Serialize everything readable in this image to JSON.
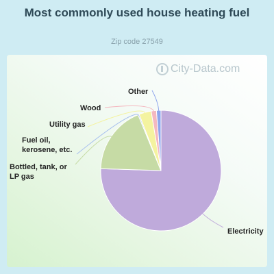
{
  "header": {
    "title": "Most commonly used house heating fuel",
    "subtitle": "Zip code 27549"
  },
  "watermark": {
    "text": "City-Data.com",
    "icon": "city-data-logo-icon"
  },
  "colors": {
    "background": "#cfecf3",
    "title": "#2f4a57",
    "subtitle": "#88a0aa",
    "label": "#222222"
  },
  "chart_data": {
    "type": "pie",
    "title": "Most commonly used house heating fuel",
    "subtitle": "Zip code 27549",
    "legend": "none (callout labels)",
    "slices": [
      {
        "label": "Electricity",
        "value": 75.5,
        "color": "#bfaadb",
        "label_lines": [
          "Electricity"
        ]
      },
      {
        "label": "Bottled, tank, or LP gas",
        "value": 18.3,
        "color": "#c6dba5",
        "label_lines": [
          "Bottled, tank, or",
          "LP gas"
        ]
      },
      {
        "label": "Fuel oil, kerosene, etc.",
        "value": 0.3,
        "color": "#a8c0ee",
        "label_lines": [
          "Fuel oil,",
          "kerosene, etc."
        ]
      },
      {
        "label": "Utility gas",
        "value": 3.3,
        "color": "#f4f3a0",
        "label_lines": [
          "Utility gas"
        ]
      },
      {
        "label": "Wood",
        "value": 1.4,
        "color": "#f4b8c0",
        "label_lines": [
          "Wood"
        ]
      },
      {
        "label": "Other",
        "value": 1.2,
        "color": "#8fa6ec",
        "label_lines": [
          "Other"
        ]
      }
    ]
  }
}
